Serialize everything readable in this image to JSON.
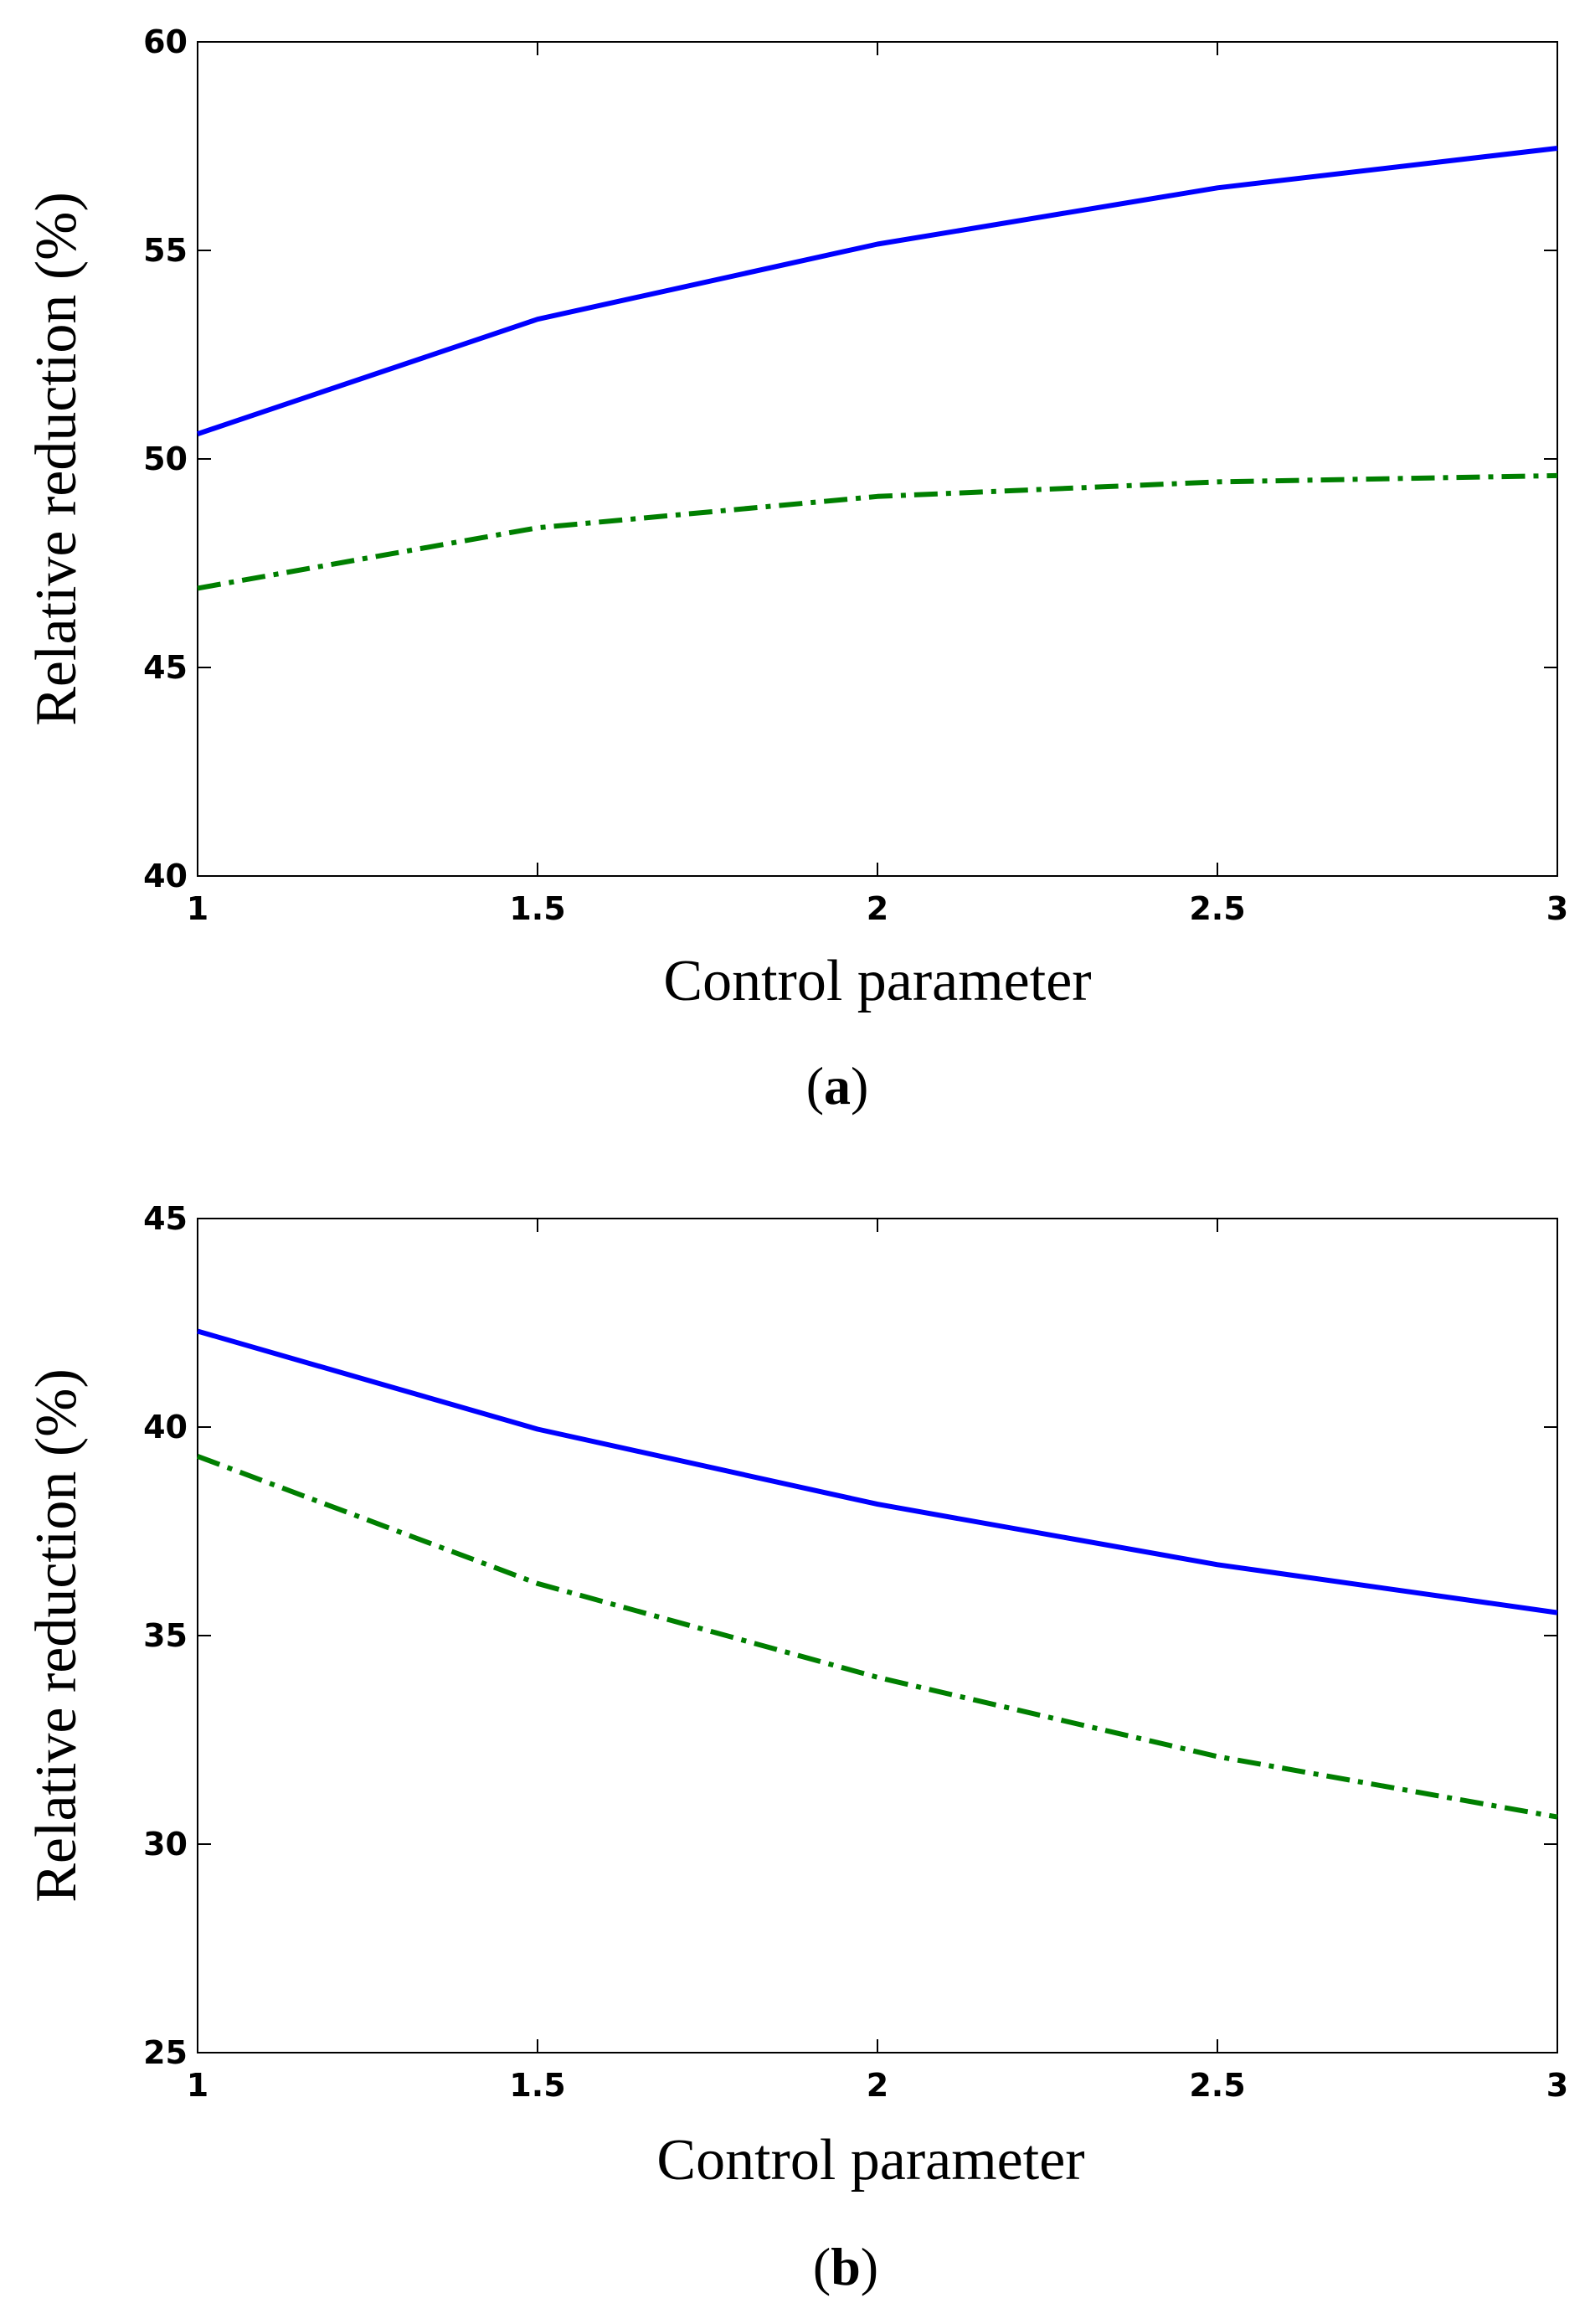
{
  "chart_data": [
    {
      "type": "line",
      "panel_label": "a",
      "xlabel": "Control parameter",
      "ylabel": "Relative reduction (%)",
      "xlim": [
        1,
        3
      ],
      "ylim": [
        40,
        60
      ],
      "xticks": [
        1,
        1.5,
        2,
        2.5,
        3
      ],
      "yticks": [
        40,
        45,
        50,
        55,
        60
      ],
      "xtick_labels": [
        "1",
        "1.5",
        "2",
        "2.5",
        "3"
      ],
      "ytick_labels": [
        "40",
        "45",
        "50",
        "55",
        "60"
      ],
      "grid": false,
      "series": [
        {
          "name": "solid",
          "color": "#0000ff",
          "style": "solid",
          "x": [
            1,
            1.5,
            2,
            2.5,
            3
          ],
          "values": [
            50.6,
            53.35,
            55.15,
            56.5,
            57.45
          ]
        },
        {
          "name": "dash-dot",
          "color": "#007f00",
          "style": "dashdot",
          "x": [
            1,
            1.5,
            2,
            2.5,
            3
          ],
          "values": [
            46.9,
            48.35,
            49.1,
            49.45,
            49.6
          ]
        }
      ]
    },
    {
      "type": "line",
      "panel_label": "b",
      "xlabel": "Control parameter",
      "ylabel": "Relative reduction (%)",
      "xlim": [
        1,
        3
      ],
      "ylim": [
        25,
        45
      ],
      "xticks": [
        1,
        1.5,
        2,
        2.5,
        3
      ],
      "yticks": [
        25,
        30,
        35,
        40,
        45
      ],
      "xtick_labels": [
        "1",
        "1.5",
        "2",
        "2.5",
        "3"
      ],
      "ytick_labels": [
        "25",
        "30",
        "35",
        "40",
        "45"
      ],
      "grid": false,
      "series": [
        {
          "name": "solid",
          "color": "#0000ff",
          "style": "solid",
          "x": [
            1,
            1.5,
            2,
            2.5,
            3
          ],
          "values": [
            42.3,
            39.95,
            38.15,
            36.7,
            35.55
          ]
        },
        {
          "name": "dash-dot",
          "color": "#007f00",
          "style": "dashdot",
          "x": [
            1,
            1.5,
            2,
            2.5,
            3
          ],
          "values": [
            39.3,
            36.25,
            34.0,
            32.1,
            30.65
          ]
        }
      ]
    }
  ]
}
